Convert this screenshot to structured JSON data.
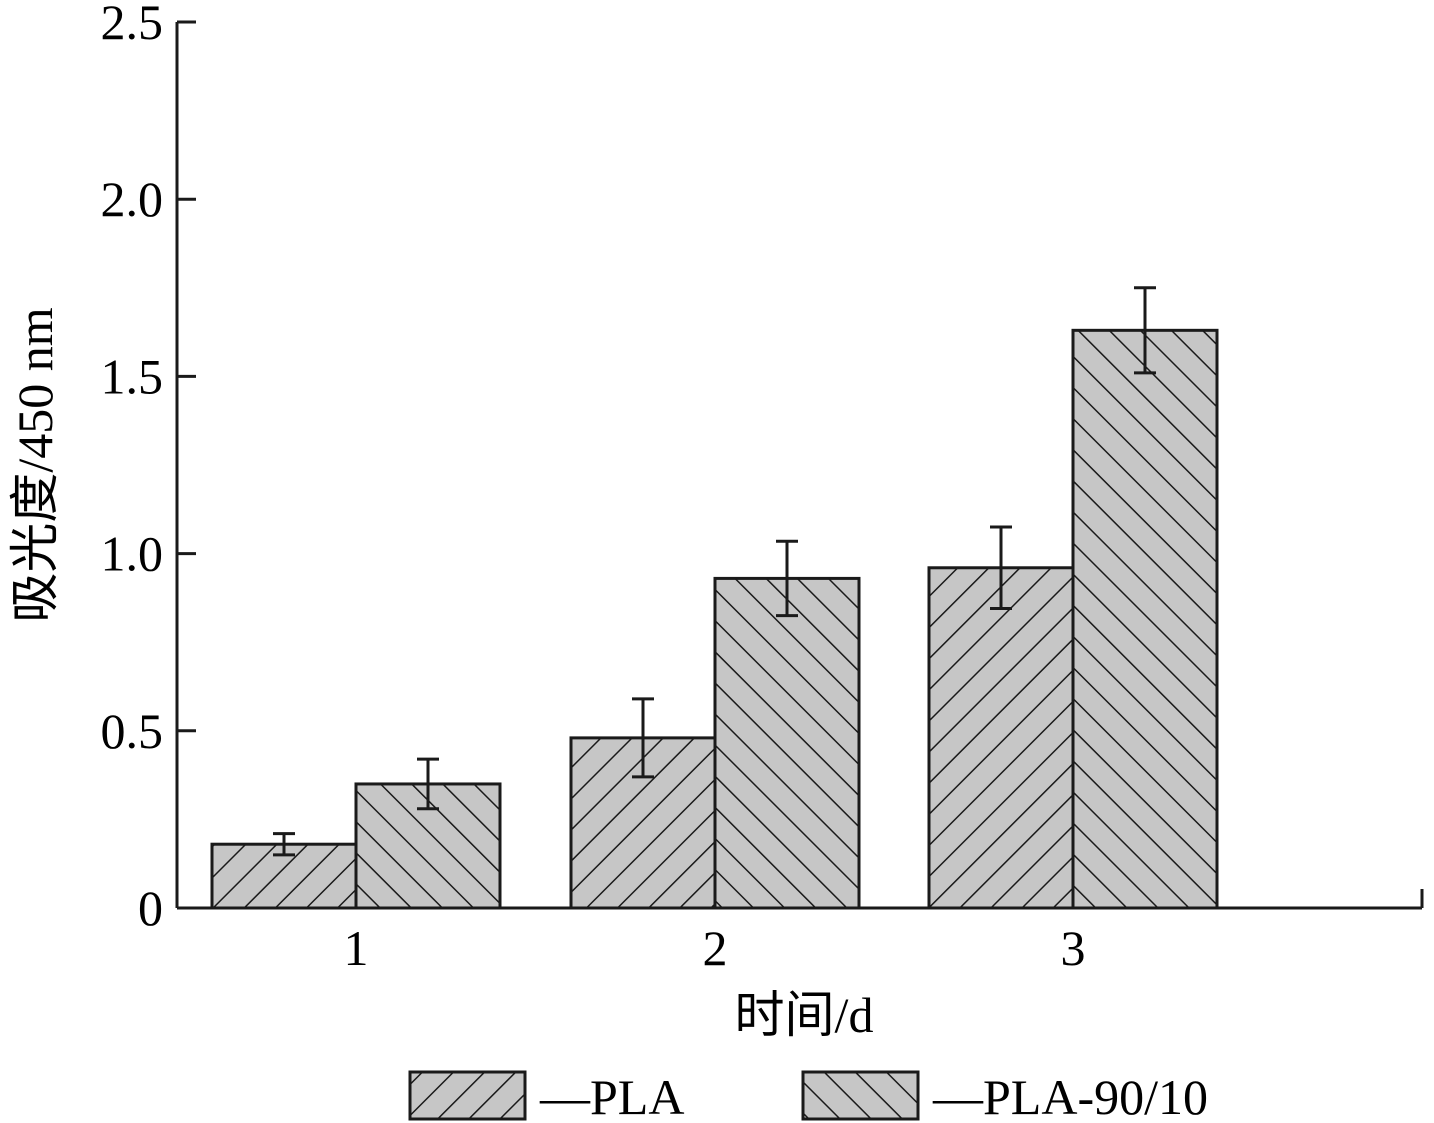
{
  "chart_data": {
    "type": "bar",
    "xlabel": "时间/d",
    "ylabel": "吸光度/450 nm",
    "categories": [
      "1",
      "2",
      "3"
    ],
    "ylim": [
      0,
      2.5
    ],
    "yticks": [
      0,
      0.5,
      1.0,
      1.5,
      2.0,
      2.5
    ],
    "ytick_labels": [
      "0",
      "0.5",
      "1.0",
      "1.5",
      "2.0",
      "2.5"
    ],
    "grid": false,
    "legend_position": "bottom",
    "series": [
      {
        "name": "—PLA",
        "pattern": "hatch-forward",
        "values": [
          0.18,
          0.48,
          0.96
        ],
        "errors": [
          0.03,
          0.11,
          0.115
        ]
      },
      {
        "name": "—PLA-90/10",
        "pattern": "hatch-backward",
        "values": [
          0.35,
          0.93,
          1.63
        ],
        "errors": [
          0.07,
          0.105,
          0.12
        ]
      }
    ],
    "colors": {
      "bar_fill": "#c6c6c6",
      "stroke": "#1a1a1a"
    }
  }
}
